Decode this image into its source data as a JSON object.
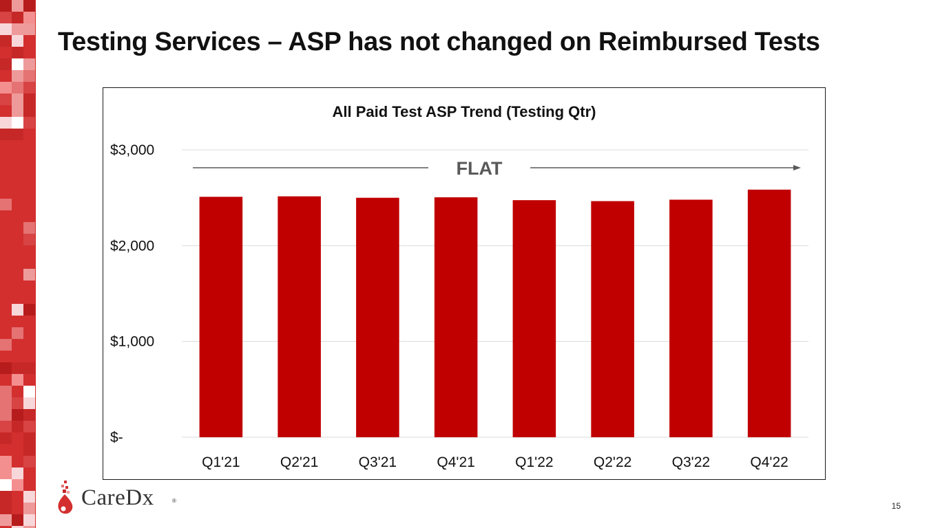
{
  "slide": {
    "title": "Testing Services – ASP has not changed on Reimbursed Tests",
    "page_number": "15",
    "logo_text": "CareDx",
    "logo_reg": "®"
  },
  "colors": {
    "bar": "#c00000",
    "accent": "#d32f2f",
    "grid": "#d9d9d9",
    "arrow": "#595959",
    "annotation": "#595959"
  },
  "chart_data": {
    "type": "bar",
    "title": "All Paid Test ASP Trend (Testing Qtr)",
    "categories": [
      "Q1'21",
      "Q2'21",
      "Q3'21",
      "Q4'21",
      "Q1'22",
      "Q2'22",
      "Q3'22",
      "Q4'22"
    ],
    "values": [
      2510,
      2515,
      2500,
      2505,
      2475,
      2465,
      2480,
      2585
    ],
    "ylim": [
      0,
      3000
    ],
    "y_ticks": [
      0,
      1000,
      2000,
      3000
    ],
    "y_tick_labels": [
      "$-",
      "$1,000",
      "$2,000",
      "$3,000"
    ],
    "grid": true,
    "legend": "none",
    "annotation": "FLAT"
  }
}
